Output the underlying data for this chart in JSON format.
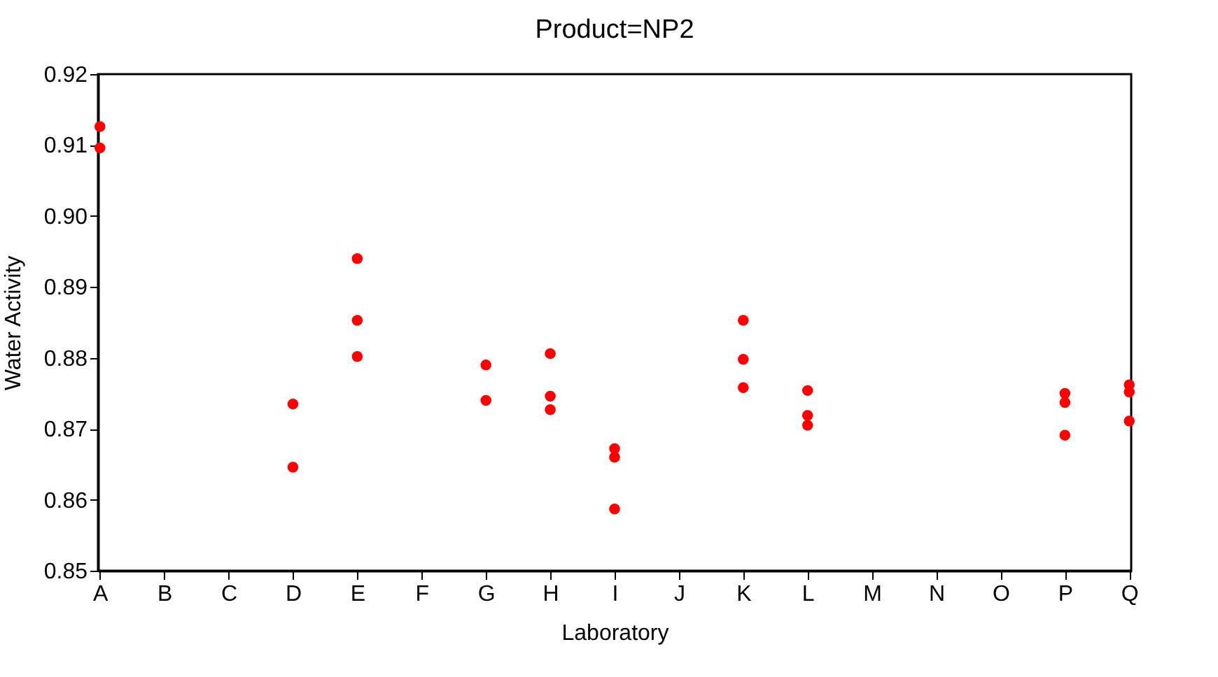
{
  "chart_data": {
    "type": "scatter",
    "title": "Product=NP2",
    "xlabel": "Laboratory",
    "ylabel": "Water Activity",
    "categories": [
      "A",
      "B",
      "C",
      "D",
      "E",
      "F",
      "G",
      "H",
      "I",
      "J",
      "K",
      "L",
      "M",
      "N",
      "O",
      "P",
      "Q"
    ],
    "series": [
      {
        "color": "#ff0000",
        "x": [
          "A",
          "A",
          "D",
          "D",
          "E",
          "E",
          "E",
          "G",
          "G",
          "H",
          "H",
          "H",
          "I",
          "I",
          "I",
          "K",
          "K",
          "K",
          "L",
          "L",
          "L",
          "P",
          "P",
          "P",
          "Q",
          "Q",
          "Q"
        ],
        "values": [
          0.9126,
          0.9096,
          0.8735,
          0.8646,
          0.894,
          0.8853,
          0.8802,
          0.879,
          0.874,
          0.8806,
          0.8746,
          0.8727,
          0.8672,
          0.866,
          0.8587,
          0.8853,
          0.8798,
          0.8758,
          0.8754,
          0.8719,
          0.8705,
          0.875,
          0.8737,
          0.8691,
          0.8762,
          0.8752,
          0.8711
        ]
      }
    ],
    "ylim": [
      0.85,
      0.92
    ],
    "yticks": [
      0.85,
      0.86,
      0.87,
      0.88,
      0.89,
      {
        "value": 0.9,
        "label": "0.90"
      },
      0.91,
      0.92
    ],
    "grid": false,
    "legend": false,
    "marker": "circle"
  }
}
